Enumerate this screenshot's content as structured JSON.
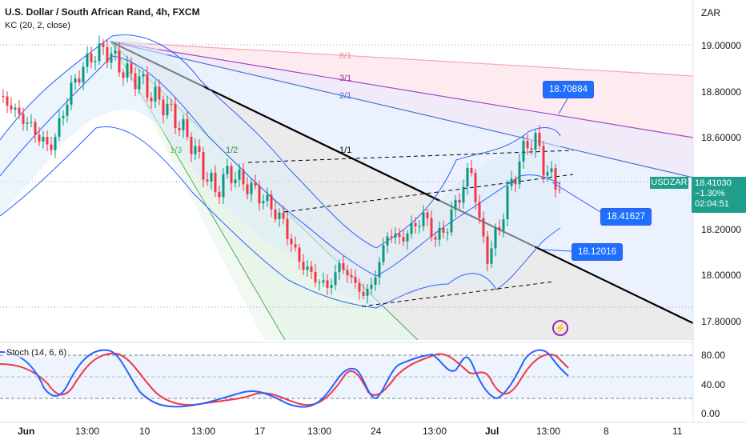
{
  "header": {
    "title": "U.S. Dollar / South African Rand, 4h, FXCM",
    "indicator": "KC (20, 2, close)",
    "currency": "ZAR"
  },
  "price_axis": {
    "labels": [
      "19.00000",
      "18.80000",
      "18.60000",
      "18.20000",
      "18.00000",
      "17.80000"
    ]
  },
  "stoch_axis": {
    "labels": [
      "80.00",
      "40.00",
      "0.00"
    ]
  },
  "time_axis": {
    "labels": [
      "Jun",
      "13:00",
      "10",
      "13:00",
      "17",
      "13:00",
      "24",
      "13:00",
      "Jul",
      "13:00",
      "8",
      "11"
    ]
  },
  "ticker": {
    "symbol": "USDZAR",
    "price": "18.41030",
    "change": "−1.30%",
    "countdown": "02:04:51"
  },
  "callouts": {
    "top": "18.70884",
    "mid": "18.41627",
    "low": "18.12016"
  },
  "fan_labels": {
    "f81": "8/1",
    "f31": "3/1",
    "f21": "2/1",
    "f11": "1/1",
    "f12": "1/2",
    "f13": "1/3"
  },
  "stoch": {
    "label": "Stoch (14, 6, 6)"
  },
  "colors": {
    "up": "#089981",
    "down": "#f23645",
    "kc": "#2962ff",
    "stoch_k": "#2962ff",
    "stoch_d": "#f23645",
    "ticker_bg": "#1f9e89",
    "callout_bg": "#1e6fff"
  }
}
